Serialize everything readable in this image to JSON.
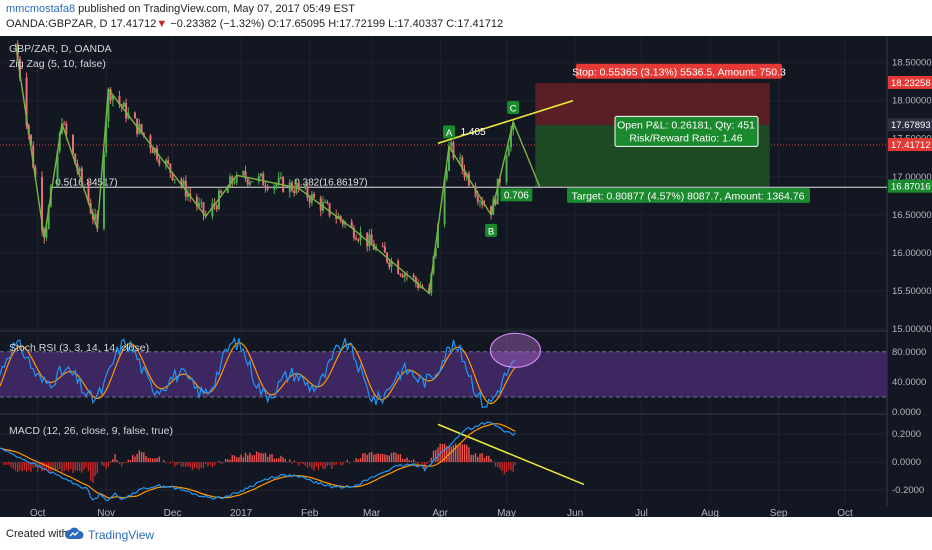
{
  "header": {
    "author": "mmcmostafa8",
    "published_text": "published on TradingView.com, May 07, 2017 05:49 EST",
    "symbol": "OANDA:GBPZAR, D",
    "last_price": "17.41712",
    "change": "−0.23382 (−1.32%)",
    "open": "O:17.65095",
    "high": "H:17.72199",
    "low": "L:17.40337",
    "close": "C:17.41712"
  },
  "footer": {
    "created_with": "Created with",
    "brand": "TradingView"
  },
  "colors": {
    "background": "#131722",
    "up": "#4caf50",
    "down": "#e57373",
    "zigzag": "#7cb342",
    "trendline": "#e8e83a",
    "stop_zone": "#5a1f24",
    "target_zone": "#1d4a25",
    "stoch_band": "#3c2760",
    "stoch_k": "#2196f3",
    "stoch_d": "#ff9800",
    "stop_label": "#e53935",
    "target_label": "#1b8a2e"
  },
  "chart_data": {
    "type": "candlestick",
    "panes": [
      {
        "name": "price",
        "title": "GBP/ZAR, D, OANDA",
        "indicator": "Zig Zag (5, 10, false)",
        "y_ticks": [
          "18.50000",
          "18.00000",
          "17.50000",
          "17.00000",
          "16.50000",
          "16.00000",
          "15.50000",
          "15.00000"
        ],
        "ylim": [
          15.0,
          18.85
        ],
        "price_labels": [
          {
            "value": 18.23258,
            "text": "18.23258",
            "role": "stop"
          },
          {
            "value": 17.67893,
            "text": "17.67893",
            "role": "entry"
          },
          {
            "value": 17.41712,
            "text": "17.41712",
            "role": "last"
          },
          {
            "value": 16.87016,
            "text": "16.87016",
            "role": "target"
          }
        ]
      },
      {
        "name": "stoch_rsi",
        "title": "Stoch RSI (3, 3, 14, 14, close)",
        "y_ticks": [
          "80.0000",
          "40.0000",
          "0.0000"
        ],
        "ylim": [
          0,
          105
        ],
        "bands": [
          80,
          20
        ]
      },
      {
        "name": "macd",
        "title": "MACD (12, 26, close, 9, false, true)",
        "y_ticks": [
          "0.2000",
          "0.0000",
          "-0.2000"
        ],
        "ylim": [
          -0.3,
          0.33
        ]
      }
    ],
    "x_ticks": [
      "Oct",
      "Nov",
      "Dec",
      "2017",
      "Feb",
      "Mar",
      "Apr",
      "May",
      "Jun",
      "Jul",
      "Aug",
      "Sep",
      "Oct"
    ],
    "zigzag": [
      {
        "date": "2016-09-21",
        "price": 18.75
      },
      {
        "date": "2016-10-04",
        "price": 16.2
      },
      {
        "date": "2016-10-12",
        "price": 17.7
      },
      {
        "date": "2016-10-28",
        "price": 16.32
      },
      {
        "date": "2016-11-02",
        "price": 18.15
      },
      {
        "date": "2016-12-16",
        "price": 16.48
      },
      {
        "date": "2016-12-30",
        "price": 17.02
      },
      {
        "date": "2017-01-27",
        "price": 16.85
      },
      {
        "date": "2017-02-20",
        "price": 16.33
      },
      {
        "date": "2017-03-27",
        "price": 15.47
      },
      {
        "date": "2017-04-05",
        "price": 17.4
      },
      {
        "date": "2017-04-24",
        "price": 16.5
      },
      {
        "date": "2017-05-04",
        "price": 17.72
      },
      {
        "date": "2017-05-16",
        "price": 16.87
      }
    ],
    "pattern_points": [
      {
        "label": "A",
        "date": "2017-04-05",
        "price": 17.4
      },
      {
        "label": "B",
        "date": "2017-04-24",
        "price": 16.5
      },
      {
        "label": "C",
        "date": "2017-05-04",
        "price": 17.72
      }
    ],
    "ratio_labels": [
      "1.405",
      "0.706"
    ],
    "fib_level": {
      "price": 16.86197,
      "text_left": "0.5(16.84517)",
      "text_right": "0.382(16.86197)"
    },
    "trendlines": [
      {
        "pane": "price",
        "from": {
          "date": "2017-03-31",
          "price": 17.44
        },
        "to": {
          "date": "2017-05-31",
          "price": 18.0
        }
      },
      {
        "pane": "macd",
        "from": {
          "date": "2017-03-31",
          "value": 0.27
        },
        "to": {
          "date": "2017-06-05",
          "value": -0.16
        }
      }
    ],
    "position": {
      "entry": 17.67893,
      "stop": 18.23258,
      "target": 16.87016,
      "start_date": "2017-05-14",
      "end_date": "2017-08-28",
      "stop_label": "Stop: 0.55365 (3.13%) 5536.5, Amount: 750.3",
      "target_label": "Target: 0.80877 (4.57%) 8087.7, Amount: 1364.76",
      "pnl_label": "Open P&L: 0.26181, Qty: 451",
      "rr_label": "Risk/Reward Ratio: 1.46"
    },
    "stoch_highlight": {
      "date": "2017-05-05",
      "value": 82
    }
  }
}
